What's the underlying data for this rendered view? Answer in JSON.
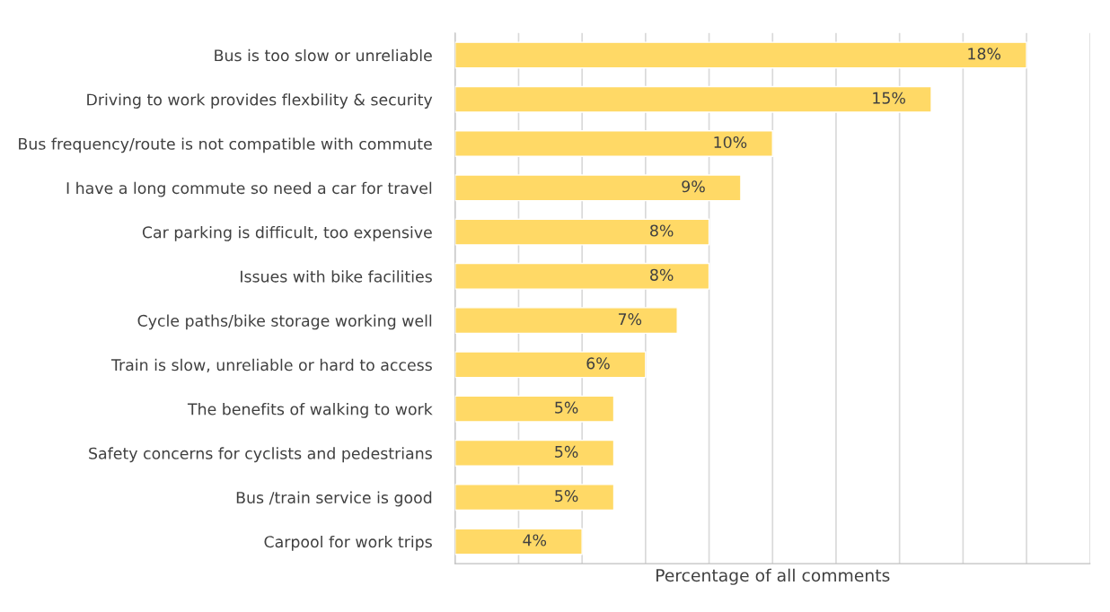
{
  "chart_data": {
    "type": "bar",
    "orientation": "horizontal",
    "categories": [
      "Bus is too slow or unreliable",
      "Driving to work provides flexbility & security",
      "Bus frequency/route is not compatible with commute",
      "I have a long commute so need a car for travel",
      "Car parking is difficult, too expensive",
      "Issues with bike facilities",
      "Cycle paths/bike storage working well",
      "Train is slow, unreliable or hard to access",
      "The benefits of walking to work",
      "Safety concerns for cyclists and pedestrians",
      "Bus /train service is good",
      "Carpool for work trips"
    ],
    "values": [
      18,
      15,
      10,
      9,
      8,
      8,
      7,
      6,
      5,
      5,
      5,
      4
    ],
    "value_labels": [
      "18%",
      "15%",
      "10%",
      "9%",
      "8%",
      "8%",
      "7%",
      "6%",
      "5%",
      "5%",
      "5%",
      "4%"
    ],
    "color": "#ffd966",
    "xlabel": "Percentage of all comments",
    "xlim": [
      0,
      20
    ],
    "xticks": [
      {
        "value": 0,
        "label": null
      },
      {
        "value": 2,
        "label": null
      },
      {
        "value": 4,
        "label": null
      },
      {
        "value": 6,
        "label": null
      },
      {
        "value": 8,
        "label": null
      },
      {
        "value": 10,
        "label": null
      },
      {
        "value": 12,
        "label": null
      },
      {
        "value": 14,
        "label": null
      },
      {
        "value": 16,
        "label": null
      },
      {
        "value": 18,
        "label": null
      },
      {
        "value": 20,
        "label": null
      }
    ],
    "tick_labels": "y",
    "grid": "x",
    "legend": false
  }
}
